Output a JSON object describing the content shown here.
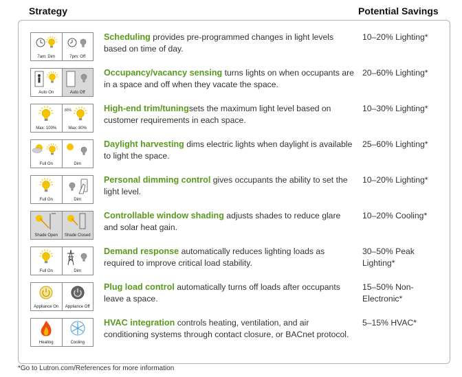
{
  "header": {
    "strategy": "Strategy",
    "savings": "Potential Savings"
  },
  "rows": [
    {
      "title": "Scheduling",
      "text": " provides pre-programmed changes in light levels based on time of day.",
      "savings": "10–20% Lighting*",
      "icons": [
        "clock-bulb-on-icon",
        "clock-bulb-off-icon"
      ],
      "labels": [
        "7am: Dim",
        "7pm: Off"
      ]
    },
    {
      "title": "Occupancy/vacancy sensing",
      "text": " turns lights on when occupants are in a space and off when they vacate the space.",
      "savings": "20–60% Lighting*",
      "icons": [
        "person-in-room-bulb-on-icon",
        "empty-room-bulb-off-icon"
      ],
      "labels": [
        "Auto On",
        "Auto Off"
      ]
    },
    {
      "title": "High-end trim/tuning",
      "text": "sets the maximum light level based on customer requirements in each space.",
      "savings": "10–30% Lighting*",
      "icons": [
        "bulb-full-icon",
        "bulb-dimmed-icon"
      ],
      "labels": [
        "Max: 100%",
        "Max: 80%"
      ]
    },
    {
      "title": "Daylight harvesting",
      "text": " dims electric lights when daylight is available to light the space.",
      "savings": "25–60% Lighting*",
      "icons": [
        "sun-cloud-bulb-icon",
        "sun-dim-bulb-icon"
      ],
      "labels": [
        "Full On",
        "Dim"
      ]
    },
    {
      "title": "Personal dimming control",
      "text": " gives occupants the ability to set the light level.",
      "savings": "10–20% Lighting*",
      "icons": [
        "bulb-on-icon",
        "hand-dimmer-icon"
      ],
      "labels": [
        "Full On",
        "Dim"
      ]
    },
    {
      "title": "Controllable window shading",
      "text": " adjusts shades to reduce glare and solar heat gain.",
      "savings": "10–20% Cooling*",
      "icons": [
        "shade-open-icon",
        "shade-closed-icon"
      ],
      "labels": [
        "Shade Open",
        "Shade Closed"
      ]
    },
    {
      "title": "Demand response",
      "text": " automatically reduces lighting loads as required to improve critical load stability.",
      "savings": "30–50% Peak Lighting*",
      "icons": [
        "bulb-on-icon",
        "power-tower-icon"
      ],
      "labels": [
        "Full On",
        "Dim"
      ]
    },
    {
      "title": "Plug load control",
      "text": " automatically turns off loads after occupants leave a space.",
      "savings": "15–50% Non-Electronic*",
      "icons": [
        "power-button-on-icon",
        "power-button-off-icon"
      ],
      "labels": [
        "Appliance On",
        "Appliance Off"
      ]
    },
    {
      "title": "HVAC integration",
      "text": " controls heating, ventilation, and air conditioning systems through contact closure, or BACnet protocol.",
      "savings": "5–15% HVAC*",
      "icons": [
        "flame-icon",
        "snowflake-icon"
      ],
      "labels": [
        "Heating",
        "Cooling"
      ]
    }
  ],
  "footnote": "*Go to Lutron.com/References for more information"
}
